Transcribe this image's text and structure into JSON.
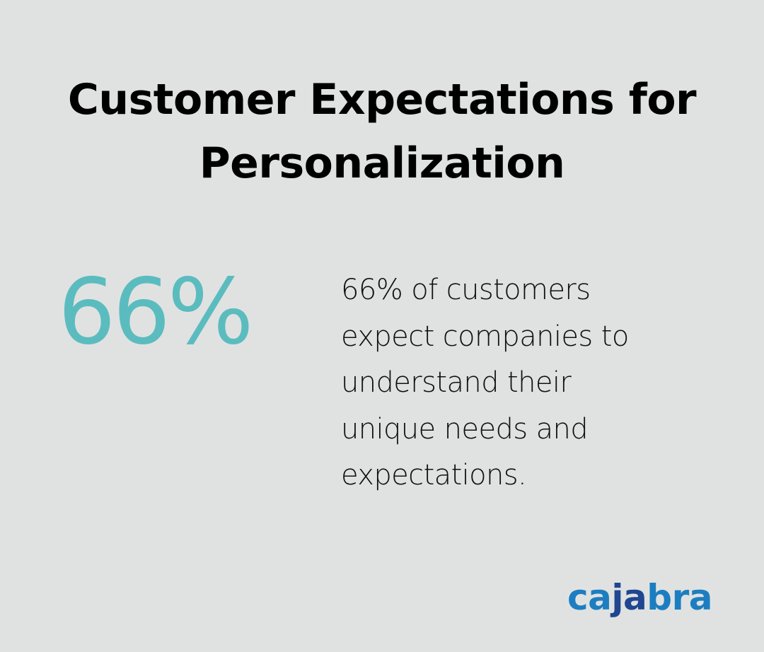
{
  "title": {
    "line1": "Customer Expectations for",
    "line2": "Personalization"
  },
  "stat": {
    "value": "66%",
    "color": "#5bbcbf"
  },
  "description": {
    "lines": [
      "66% of customers",
      "expect companies to",
      "understand their",
      "unique needs and",
      "expectations."
    ]
  },
  "logo": {
    "text": "cajabra",
    "parts": [
      "ca",
      "ja",
      "bra"
    ],
    "colors": {
      "light": "#1c7ec1",
      "dark": "#1f4690"
    }
  },
  "background_color": "#e0e2e1"
}
